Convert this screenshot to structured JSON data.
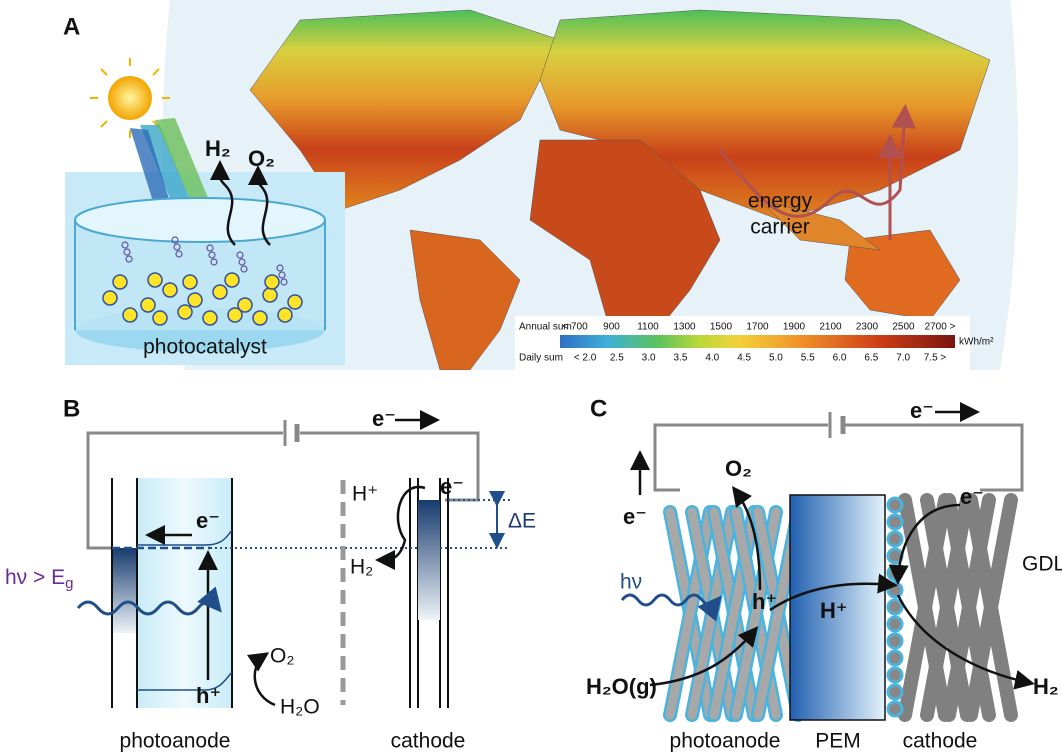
{
  "panels": {
    "a": {
      "label": "A",
      "photocatalyst": "photocatalyst",
      "h2": "H₂",
      "o2": "O₂",
      "energy_carrier": [
        "energy",
        "carrier"
      ],
      "legend": {
        "annual_title": "Annual sum",
        "annual_ticks": [
          "< 700",
          "900",
          "1100",
          "1300",
          "1500",
          "1700",
          "1900",
          "2100",
          "2300",
          "2500",
          "2700 >"
        ],
        "unit": "kWh/m²",
        "daily_title": "Daily sum",
        "daily_ticks": [
          "< 2.0",
          "2.5",
          "3.0",
          "3.5",
          "4.0",
          "4.5",
          "5.0",
          "5.5",
          "6.0",
          "6.5",
          "7.0",
          "7.5 >"
        ]
      }
    },
    "b": {
      "label": "B",
      "electron_top": "e⁻",
      "electron_anode": "e⁻",
      "electron_cathode": "e⁻",
      "photon": {
        "text": "hν > E",
        "sub": "g"
      },
      "delta_e": "ΔE",
      "h_plus": "H⁺",
      "h2": "H₂",
      "o2": "O₂",
      "h2o": "H₂O",
      "hole": "h⁺",
      "photoanode": "photoanode",
      "cathode": "cathode"
    },
    "c": {
      "label": "C",
      "electron_top": "e⁻",
      "electron_left": "e⁻",
      "electron_right": "e⁻",
      "o2": "O₂",
      "photon": "hν",
      "hole": "h⁺",
      "h_plus": "H⁺",
      "gdl": "GDL",
      "h2o": "H₂O(g)",
      "h2": "H₂",
      "photoanode": "photoanode",
      "pem": "PEM",
      "cathode": "cathode"
    }
  }
}
